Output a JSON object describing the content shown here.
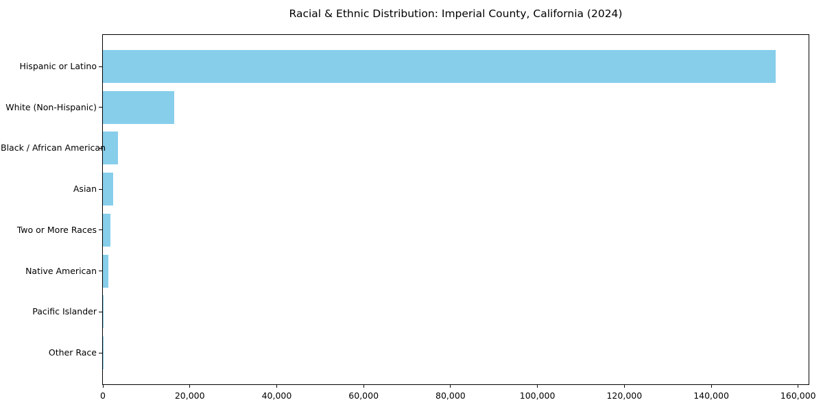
{
  "page": {
    "background_color": "#ffffff",
    "text_color": "#000000"
  },
  "chart_data": {
    "type": "bar",
    "orientation": "horizontal",
    "title": "Racial & Ethnic Distribution: Imperial County, California (2024)",
    "categories": [
      "Hispanic or Latino",
      "White (Non-Hispanic)",
      "Black / African American",
      "Asian",
      "Two or More Races",
      "Native American",
      "Pacific Islander",
      "Other Race"
    ],
    "values": [
      154800,
      16400,
      3500,
      2400,
      1700,
      1300,
      200,
      50
    ],
    "xlabel": "",
    "ylabel": "",
    "xlim": [
      0,
      162400
    ],
    "x_ticks": [
      0,
      20000,
      40000,
      60000,
      80000,
      100000,
      120000,
      140000,
      160000
    ],
    "x_tick_labels": [
      "0",
      "20,000",
      "40,000",
      "60,000",
      "80,000",
      "100,000",
      "120,000",
      "140,000",
      "160,000"
    ],
    "bar_color": "#87CEEB",
    "frame_color": "#000000",
    "grid": false,
    "legend_position": "none"
  }
}
